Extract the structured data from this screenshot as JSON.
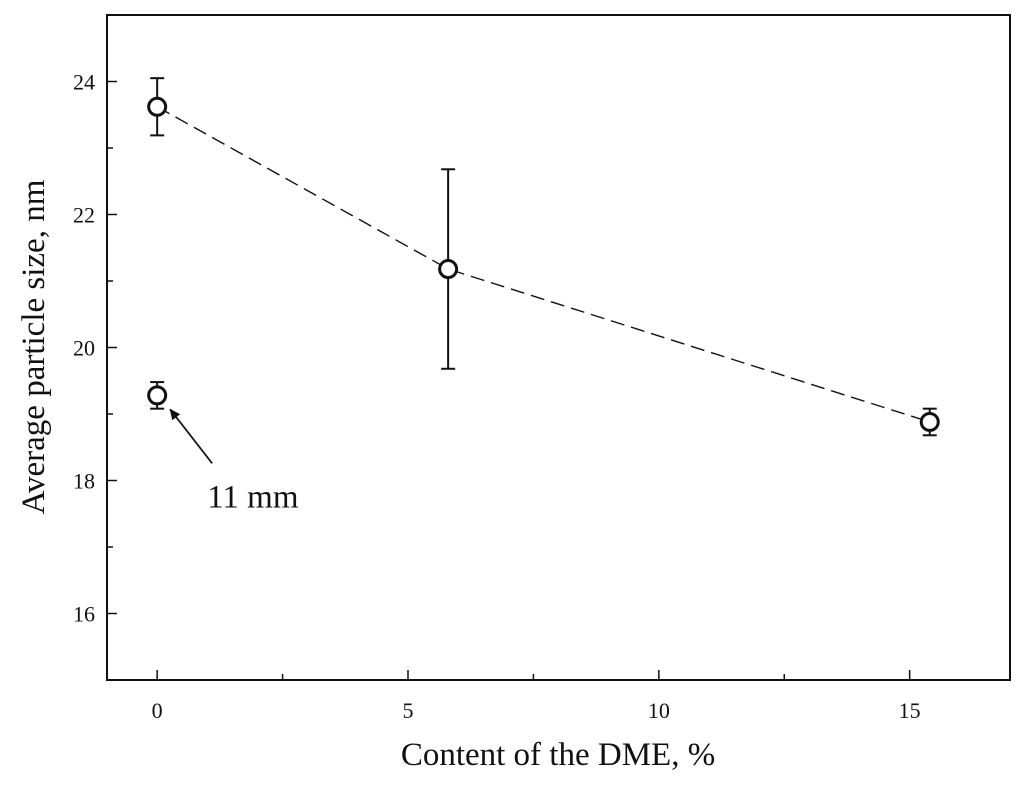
{
  "chart_data": {
    "type": "scatter",
    "title": "",
    "xlabel": "Content of the DME, %",
    "ylabel": "Average particle size, nm",
    "xlim": [
      -1,
      17
    ],
    "ylim": [
      15,
      25
    ],
    "x_ticks": [
      0,
      5,
      10,
      15
    ],
    "x_tick_labels": [
      "0",
      "5",
      "10",
      "15"
    ],
    "y_ticks": [
      16,
      18,
      20,
      22,
      24
    ],
    "y_tick_labels": [
      "16",
      "18",
      "20",
      "22",
      "24"
    ],
    "grid": false,
    "legend": "none",
    "series": [
      {
        "style": "dashed-line-with-open-circles",
        "x": [
          0,
          5.8,
          15.4
        ],
        "y": [
          23.62,
          21.18,
          18.88
        ],
        "error": [
          0.43,
          1.5,
          0.2
        ]
      },
      {
        "style": "open-circle",
        "x": [
          0
        ],
        "y": [
          19.28
        ],
        "error": [
          0.2
        ]
      }
    ],
    "annotations": [
      {
        "text": "11 mm",
        "points_to": {
          "x": 0,
          "y": 19.28
        }
      }
    ],
    "colors": {
      "marks": "#111111",
      "background": "#ffffff"
    }
  }
}
